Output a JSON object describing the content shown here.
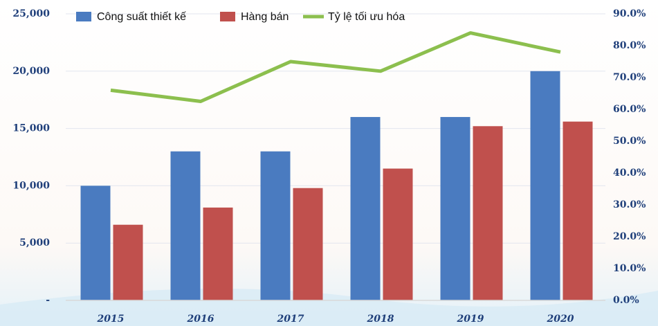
{
  "chart_data": {
    "type": "bar-line",
    "categories": [
      "2015",
      "2016",
      "2017",
      "2018",
      "2019",
      "2020"
    ],
    "series": [
      {
        "name": "Công suất thiết kế",
        "color": "#4a7bc0",
        "type": "bar",
        "values": [
          10000,
          13000,
          13000,
          16000,
          16000,
          20000
        ]
      },
      {
        "name": "Hàng bán",
        "color": "#c0504d",
        "type": "bar",
        "values": [
          6600,
          8100,
          9800,
          11500,
          15200,
          15600
        ]
      },
      {
        "name": "Tỷ lệ tối ưu hóa",
        "color": "#8cbf4e",
        "type": "line",
        "axis": "y2",
        "values": [
          66,
          62.5,
          75,
          72,
          84,
          78
        ]
      }
    ],
    "ylim": [
      0,
      25000
    ],
    "yticks": [
      {
        "value": 0,
        "label": "-"
      },
      {
        "value": 5000,
        "label": "5,000"
      },
      {
        "value": 10000,
        "label": "10,000"
      },
      {
        "value": 15000,
        "label": "15,000"
      },
      {
        "value": 20000,
        "label": "20,000"
      },
      {
        "value": 25000,
        "label": "25,000"
      }
    ],
    "y2lim": [
      0,
      90
    ],
    "y2ticks": [
      {
        "value": 0,
        "label": "0.0%"
      },
      {
        "value": 10,
        "label": "10.0%"
      },
      {
        "value": 20,
        "label": "20.0%"
      },
      {
        "value": 30,
        "label": "30.0%"
      },
      {
        "value": 40,
        "label": "40.0%"
      },
      {
        "value": 50,
        "label": "50.0%"
      },
      {
        "value": 60,
        "label": "60.0%"
      },
      {
        "value": 70,
        "label": "70.0%"
      },
      {
        "value": 80,
        "label": "80.0%"
      },
      {
        "value": 90,
        "label": "90.0%"
      }
    ],
    "grid": true
  }
}
